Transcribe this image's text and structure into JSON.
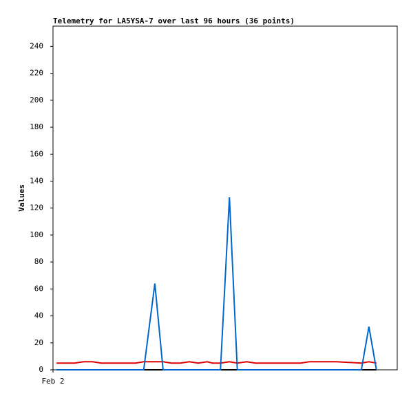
{
  "chart_data": {
    "type": "line",
    "title": "Telemetry for LA5YSA-7 over last 96 hours (36 points)",
    "y_label": "Values",
    "x": [
      1,
      3.5,
      6,
      8.5,
      11,
      13.5,
      16,
      18.5,
      21,
      23,
      25.3,
      28.4,
      30.7,
      33,
      35.5,
      38,
      40.5,
      43,
      44.5,
      46.7,
      49.2,
      51.4,
      54,
      56.5,
      59,
      61.5,
      64,
      66.5,
      69,
      71.5,
      74,
      76.5,
      79,
      86,
      88.1,
      90.2
    ],
    "xlim": [
      0,
      96
    ],
    "xticks": [
      {
        "value": 0,
        "label": "Feb 2"
      }
    ],
    "ylim": [
      0,
      255
    ],
    "yticks": [
      0,
      20,
      40,
      60,
      80,
      100,
      120,
      140,
      160,
      180,
      200,
      220,
      240
    ],
    "series": [
      {
        "color": "#000000",
        "values": [
          0,
          0,
          0,
          0,
          0,
          0,
          0,
          0,
          0,
          0,
          0,
          0,
          0,
          0,
          0,
          0,
          0,
          0,
          0,
          0,
          0,
          0,
          0,
          0,
          0,
          0,
          0,
          0,
          0,
          0,
          0,
          0,
          0,
          0,
          0,
          0
        ]
      },
      {
        "color": "#dd0000",
        "values": [
          5,
          5,
          5,
          6,
          6,
          5,
          5,
          5,
          5,
          5,
          6,
          6,
          6,
          5,
          5,
          6,
          5,
          6,
          5,
          5,
          6,
          5,
          6,
          5,
          5,
          5,
          5,
          5,
          5,
          6,
          6,
          6,
          6,
          5,
          6,
          5
        ]
      },
      {
        "color": "#0066cc",
        "values": [
          0,
          0,
          0,
          0,
          0,
          0,
          0,
          0,
          0,
          0,
          0,
          64,
          0,
          0,
          0,
          0,
          0,
          0,
          0,
          0,
          128,
          0,
          0,
          0,
          0,
          0,
          0,
          0,
          0,
          0,
          0,
          0,
          0,
          0,
          32,
          0
        ]
      }
    ]
  }
}
